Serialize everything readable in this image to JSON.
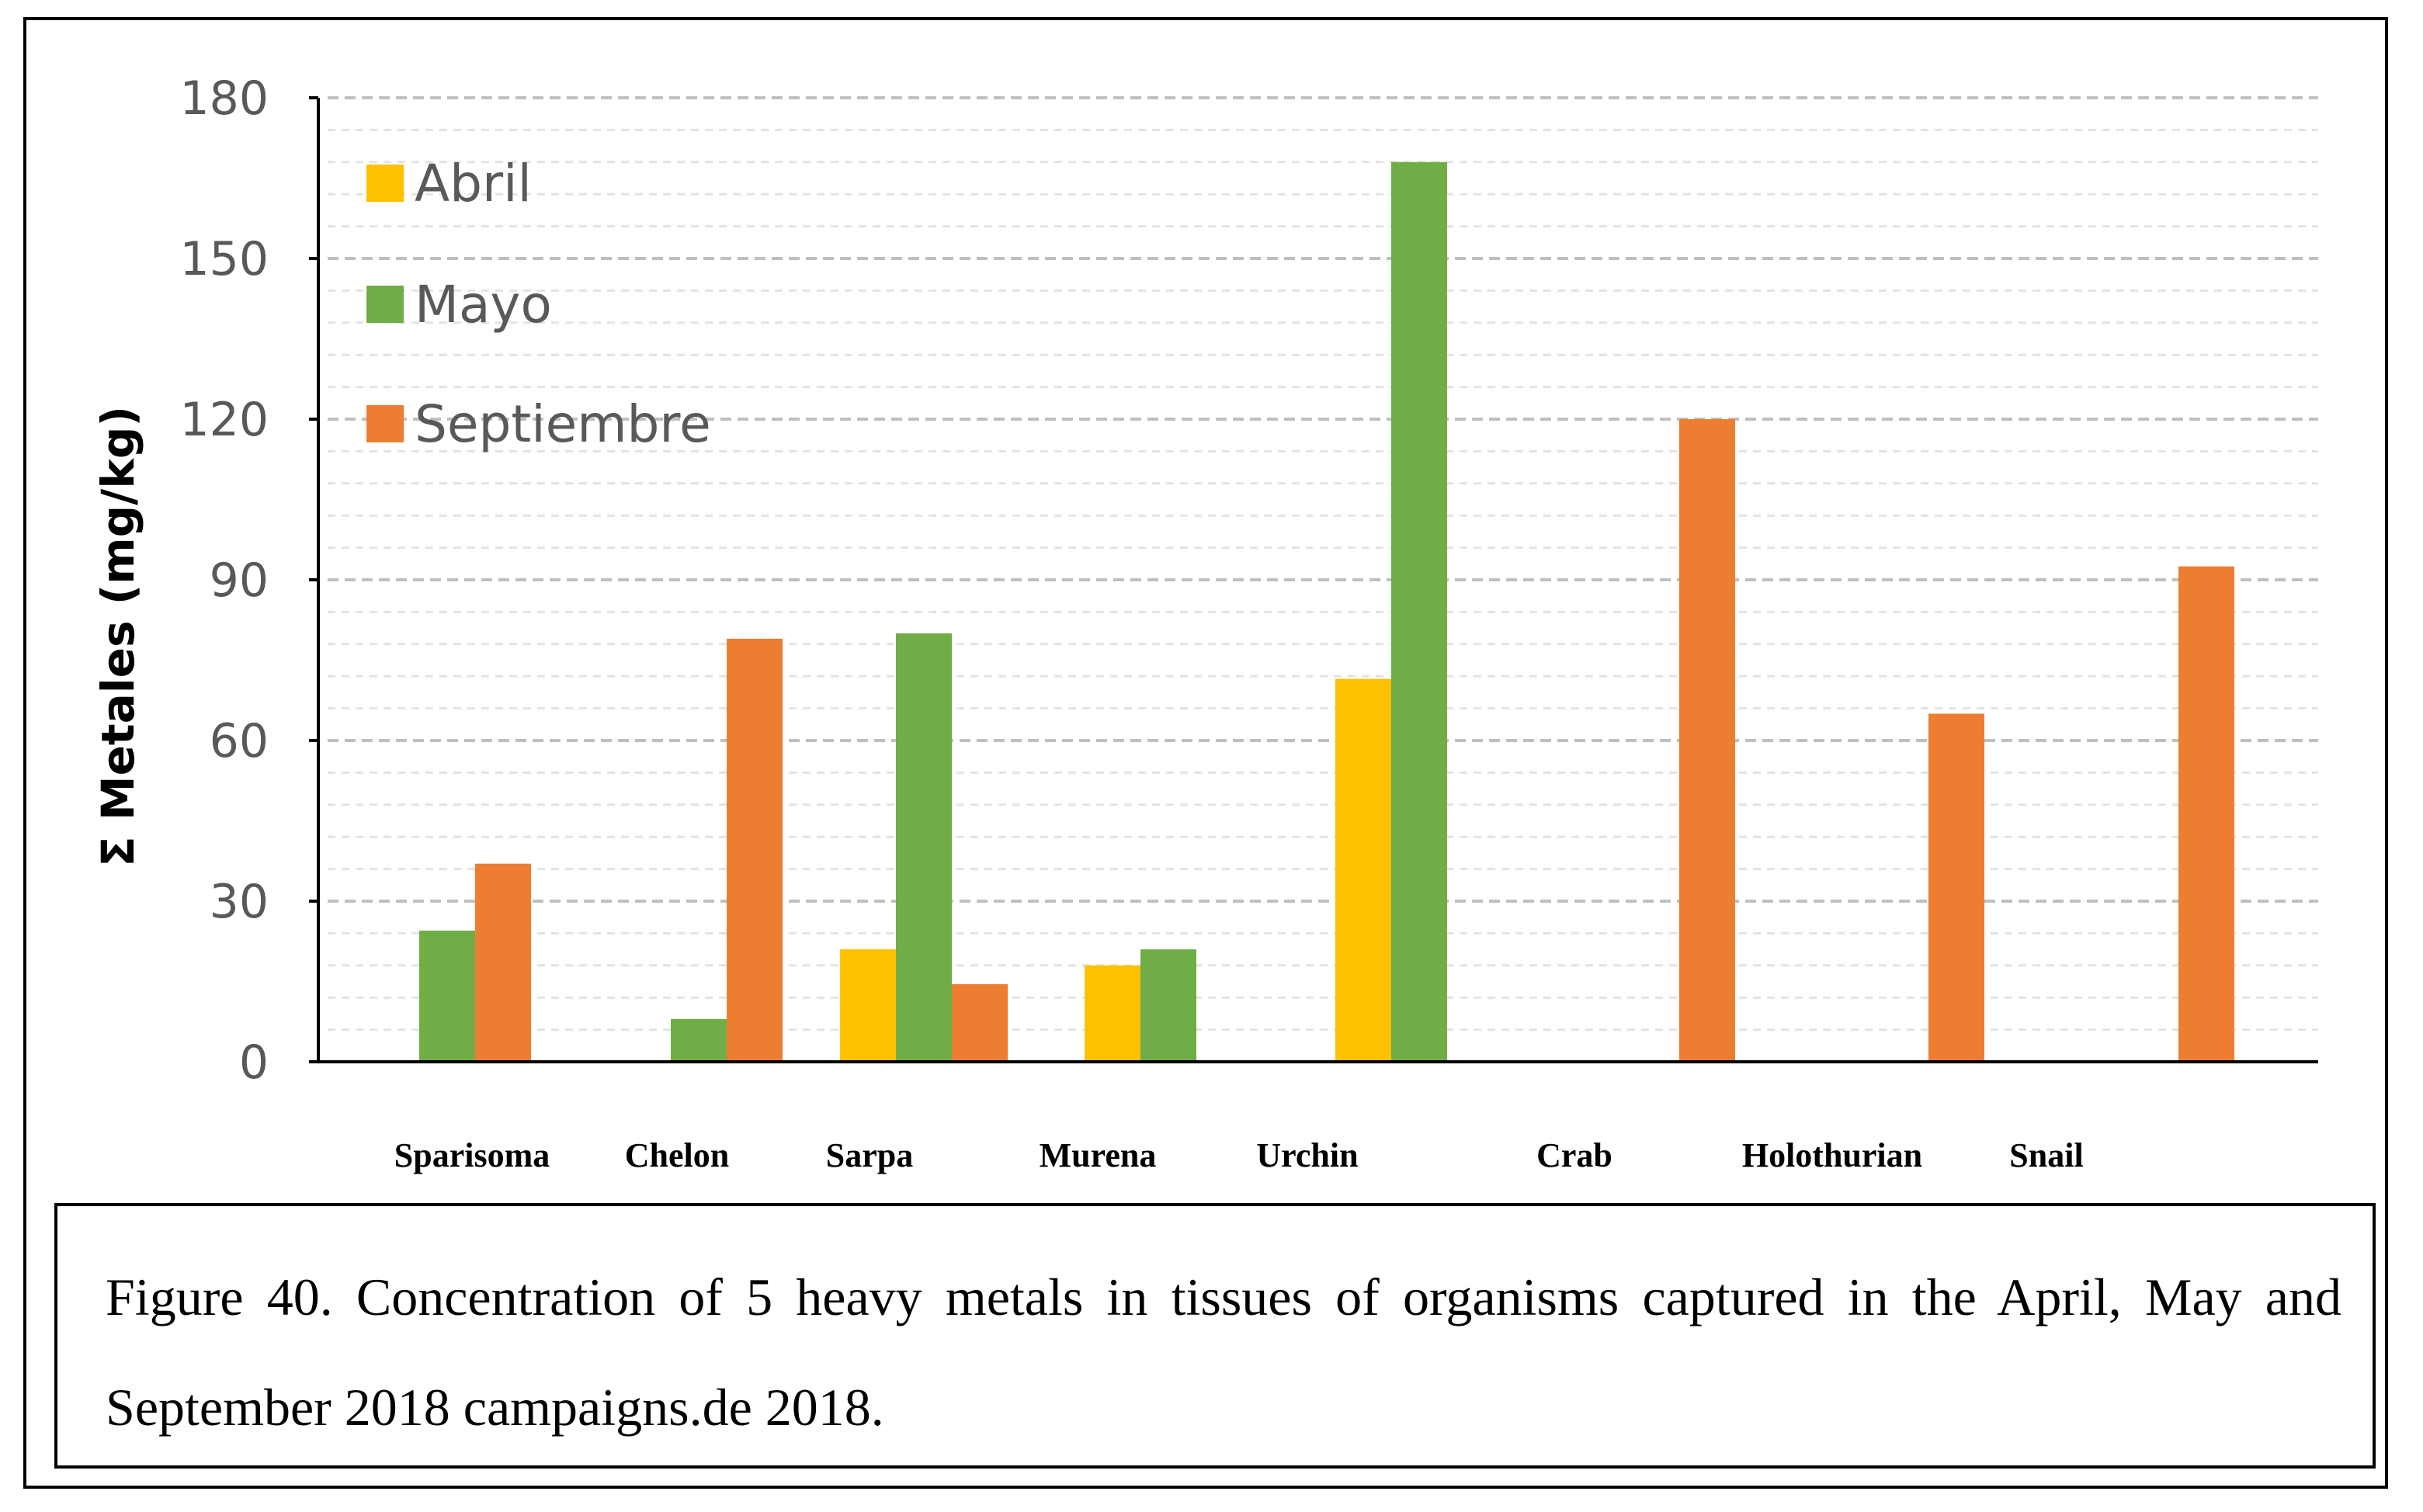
{
  "chart_data": {
    "type": "bar",
    "title": "",
    "xlabel": "",
    "ylabel": "Σ Metales (mg/kg)",
    "ylim": [
      0,
      180
    ],
    "yticks": [
      0,
      30,
      60,
      90,
      120,
      150,
      180
    ],
    "grid": true,
    "legend_position": "top-left",
    "categories": [
      "Sparisoma",
      "Chelon",
      "Sarpa",
      "Murena",
      "Urchin",
      "Crab",
      "Holothurian",
      "Snail",
      ""
    ],
    "series": [
      {
        "name": "Abril",
        "color": "#FFC000",
        "values": [
          null,
          null,
          21,
          18,
          71.5,
          null,
          null,
          null,
          null
        ]
      },
      {
        "name": "Mayo",
        "color": "#70AD47",
        "values": [
          24.5,
          8,
          80,
          21,
          168,
          null,
          null,
          null,
          null
        ]
      },
      {
        "name": "Septiembre",
        "color": "#ED7D31",
        "values": [
          37,
          79,
          14.5,
          null,
          null,
          120,
          65,
          92.5,
          null
        ]
      }
    ]
  },
  "caption": "Figure 40. Concentration of 5 heavy metals in tissues of organisms captured in the April, May and September 2018 campaigns.de 2018."
}
